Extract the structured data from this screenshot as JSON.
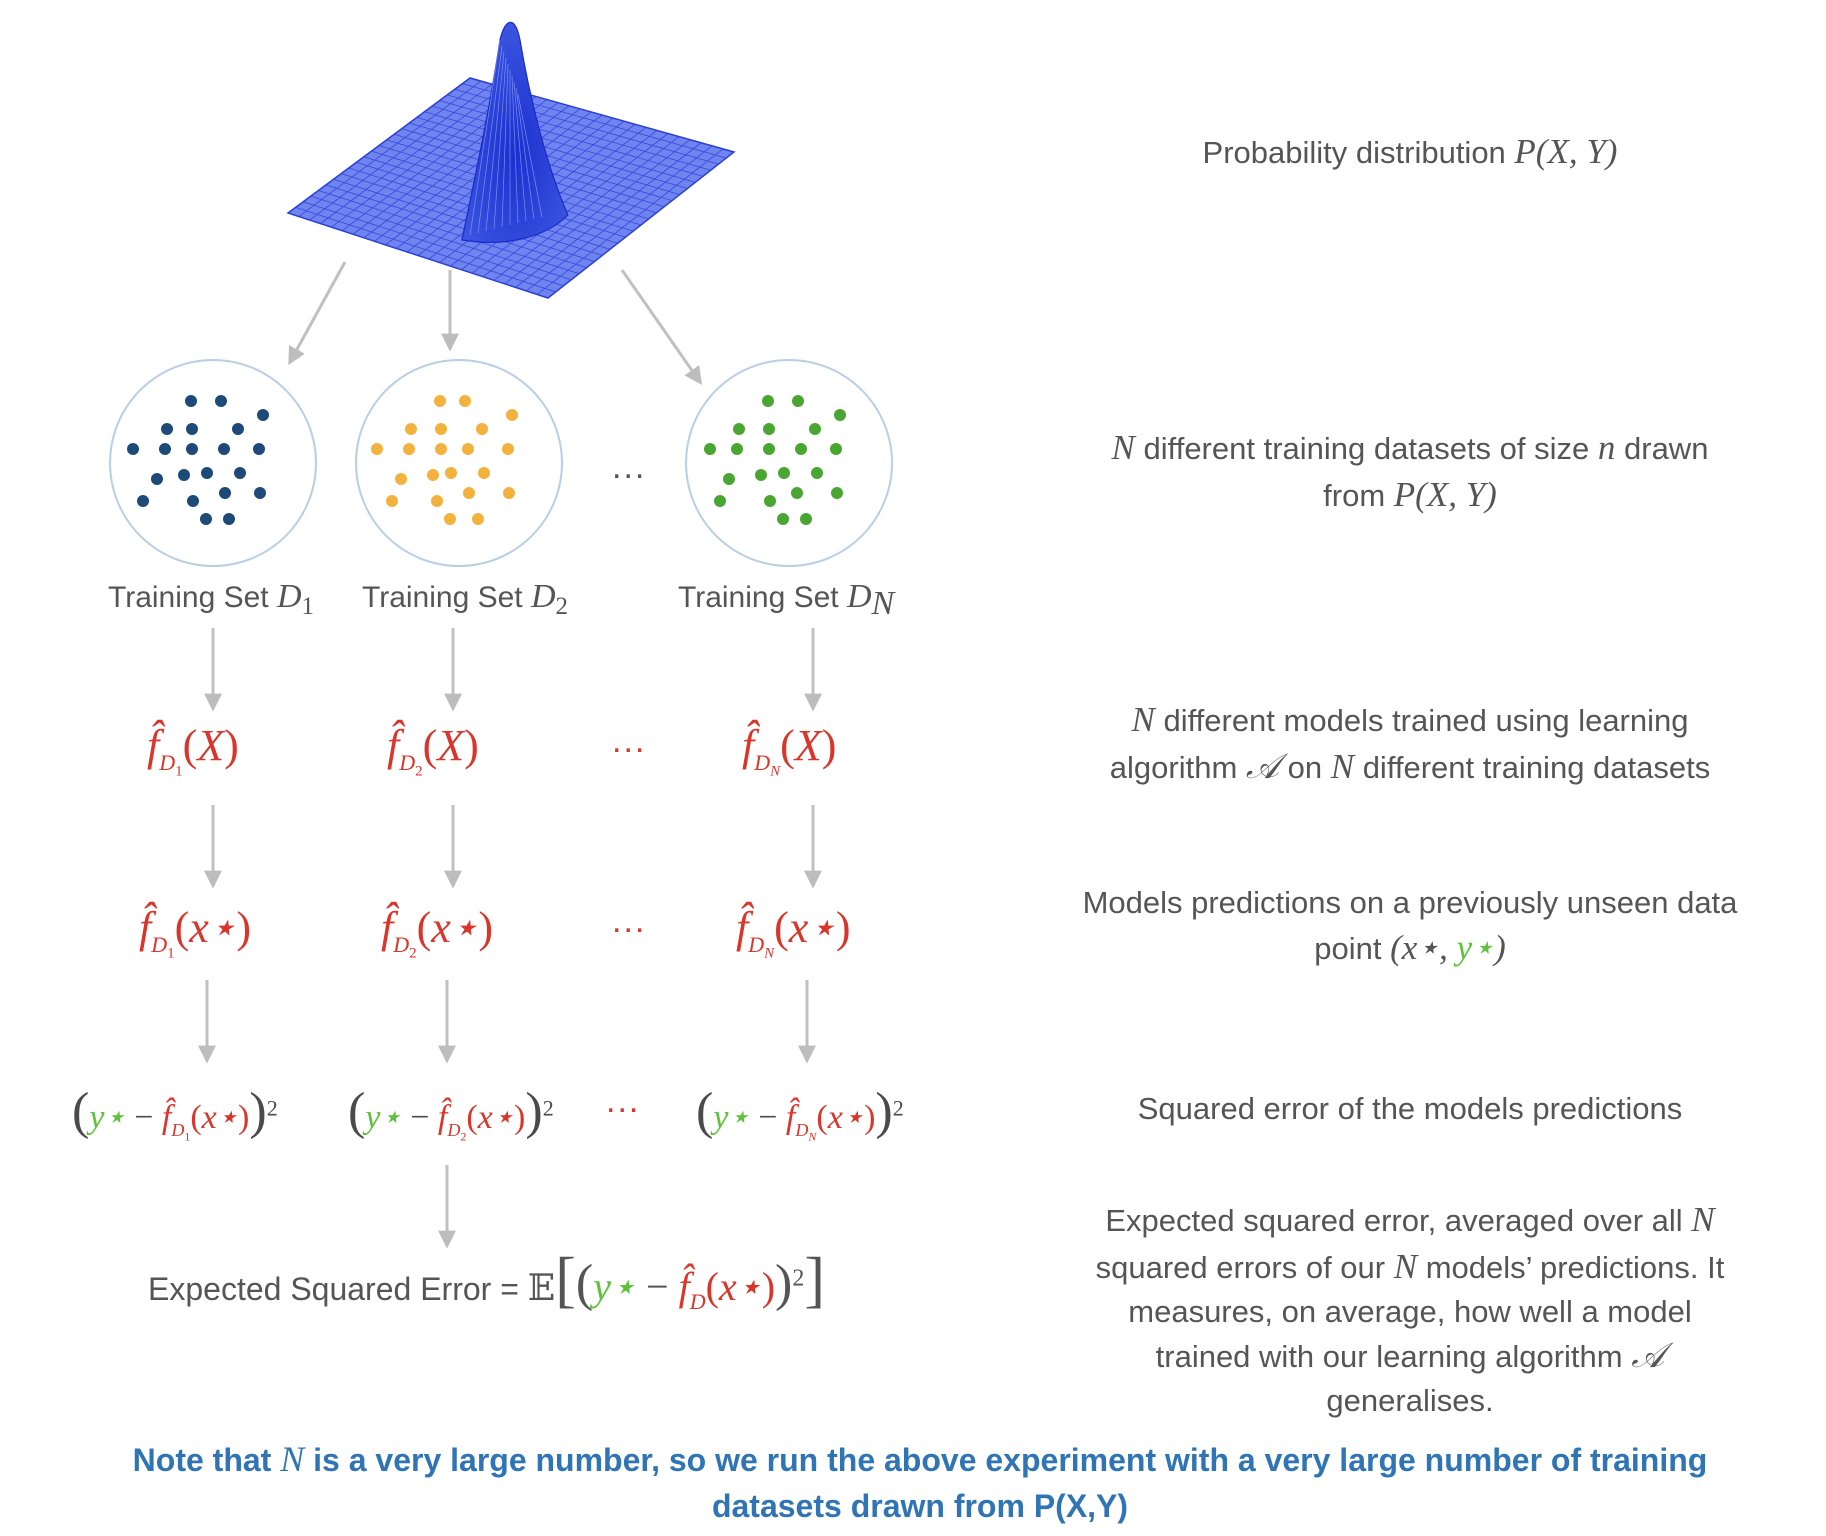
{
  "sets": [
    {
      "label_text": "Training Set ",
      "label_sym": "D",
      "label_sub": "1",
      "color": "#1d4a78",
      "model_sub": "1",
      "model_arg": "X"
    },
    {
      "label_text": "Training Set ",
      "label_sym": "D",
      "label_sub": "2",
      "color": "#f3b23e",
      "model_sub": "2",
      "model_arg": "X"
    },
    {
      "label_text": "Training Set ",
      "label_sym": "D",
      "label_sub": "N",
      "color": "#4aa632",
      "model_sub": "N",
      "model_arg": "X"
    }
  ],
  "ellipsis": "...",
  "math": {
    "f_hat": "f̂",
    "D": "D",
    "x_star_arg": "x⋆",
    "y_star": "y⋆",
    "minus": "−",
    "power": "2",
    "open_paren": "(",
    "close_paren": ")"
  },
  "descriptions": {
    "distribution": {
      "text": "Probability distribution ",
      "math": "P(X, Y)"
    },
    "datasets": {
      "m1": "N",
      "t1": " different training datasets of size ",
      "m2": "n",
      "t2": " drawn from ",
      "m3": "P(X, Y)"
    },
    "models": {
      "m1": "N",
      "t1": " different models trained using learning algorithm ",
      "m2": "𝒜",
      "t2": " on ",
      "m3": "N",
      "t3": " different training datasets"
    },
    "predictions": {
      "t1": "Models predictions on a previously unseen data point ",
      "m1": "(x⋆, ",
      "m2": "y⋆",
      "m3": ")"
    },
    "squared_error": {
      "text": "Squared error of the models predictions"
    },
    "expected": {
      "t1": "Expected squared error, averaged over all ",
      "m1": "N",
      "t2": " squared errors of our ",
      "m2": "N",
      "t3": " models’ predictions. It measures, on average, how well a model trained with our learning algorithm ",
      "m3": "𝒜",
      "t4": " generalises."
    }
  },
  "expected_error": {
    "label": "Expected Squared Error",
    "equals": "=",
    "expectation": "𝔼",
    "sub": "D"
  },
  "note": {
    "t1": "Note that ",
    "m1": "N",
    "t2": " is a very large number, so we run the above experiment with a very large number of training datasets drawn from P(X,Y)"
  },
  "colors": {
    "red": "#d9352a",
    "green": "#5fc23c",
    "blue_note": "#2f74b5",
    "arrow": "#c0c0c0",
    "mesh": "#2a3fd6"
  }
}
